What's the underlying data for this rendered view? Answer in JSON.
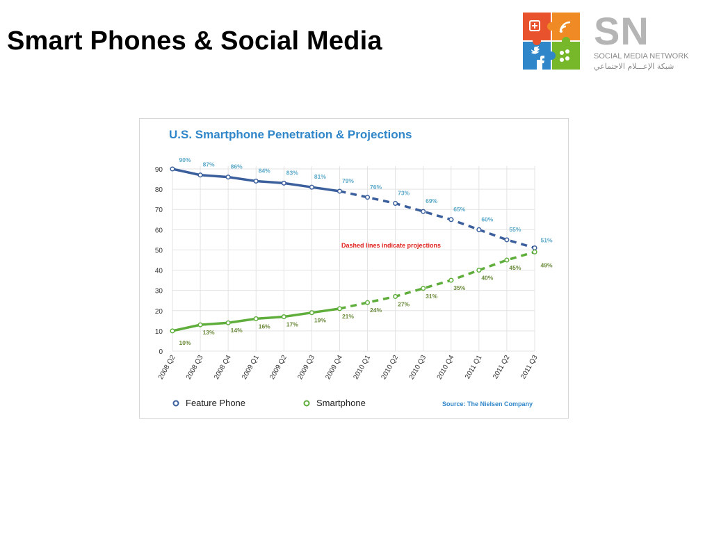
{
  "slide": {
    "title": "Smart Phones & Social Media"
  },
  "logo": {
    "letters": "SN",
    "name_en": "SOCIAL MEDIA NETWORK",
    "name_ar": "شبكة الإعـــلام الاجتماعي",
    "tile_colors": [
      "#e8522d",
      "#f08a24",
      "#2f86c9",
      "#76b82a"
    ]
  },
  "chart_data": {
    "type": "line",
    "title": "U.S. Smartphone Penetration & Projections",
    "categories": [
      "2008 Q2",
      "2008 Q3",
      "2008 Q4",
      "2009 Q1",
      "2009 Q2",
      "2009 Q3",
      "2009 Q4",
      "2010 Q1",
      "2010 Q2",
      "2010 Q3",
      "2010 Q4",
      "2011 Q1",
      "2011 Q2",
      "2011 Q3"
    ],
    "y_ticks": [
      "0",
      "10",
      "20",
      "30",
      "40",
      "50",
      "60",
      "70",
      "80",
      "90"
    ],
    "ylim": [
      0,
      90
    ],
    "grid": true,
    "projection_start_index": 6,
    "series": [
      {
        "name": "Feature Phone",
        "color": "#3a5f9c",
        "label_color": "#5aa8c8",
        "values": [
          90,
          87,
          86,
          84,
          83,
          81,
          79,
          76,
          73,
          69,
          65,
          60,
          55,
          51
        ],
        "labels": [
          "90%",
          "87%",
          "86%",
          "84%",
          "83%",
          "81%",
          "79%",
          "76%",
          "73%",
          "69%",
          "65%",
          "60%",
          "55%",
          "51%"
        ]
      },
      {
        "name": "Smartphone",
        "color": "#5fae3c",
        "label_color": "#6a8a3a",
        "values": [
          10,
          13,
          14,
          16,
          17,
          19,
          21,
          24,
          27,
          31,
          35,
          40,
          45,
          49
        ],
        "labels": [
          "10%",
          "13%",
          "14%",
          "16%",
          "17%",
          "19%",
          "21%",
          "24%",
          "27%",
          "31%",
          "35%",
          "40%",
          "45%",
          "49%"
        ]
      }
    ],
    "annotation": "Dashed lines indicate projections",
    "annotation_color": "#e0231e",
    "source": "Source: The Nielsen Company",
    "source_color": "#2f86c9",
    "legend_placement": "bottom",
    "title_color": "#2f86c9"
  }
}
